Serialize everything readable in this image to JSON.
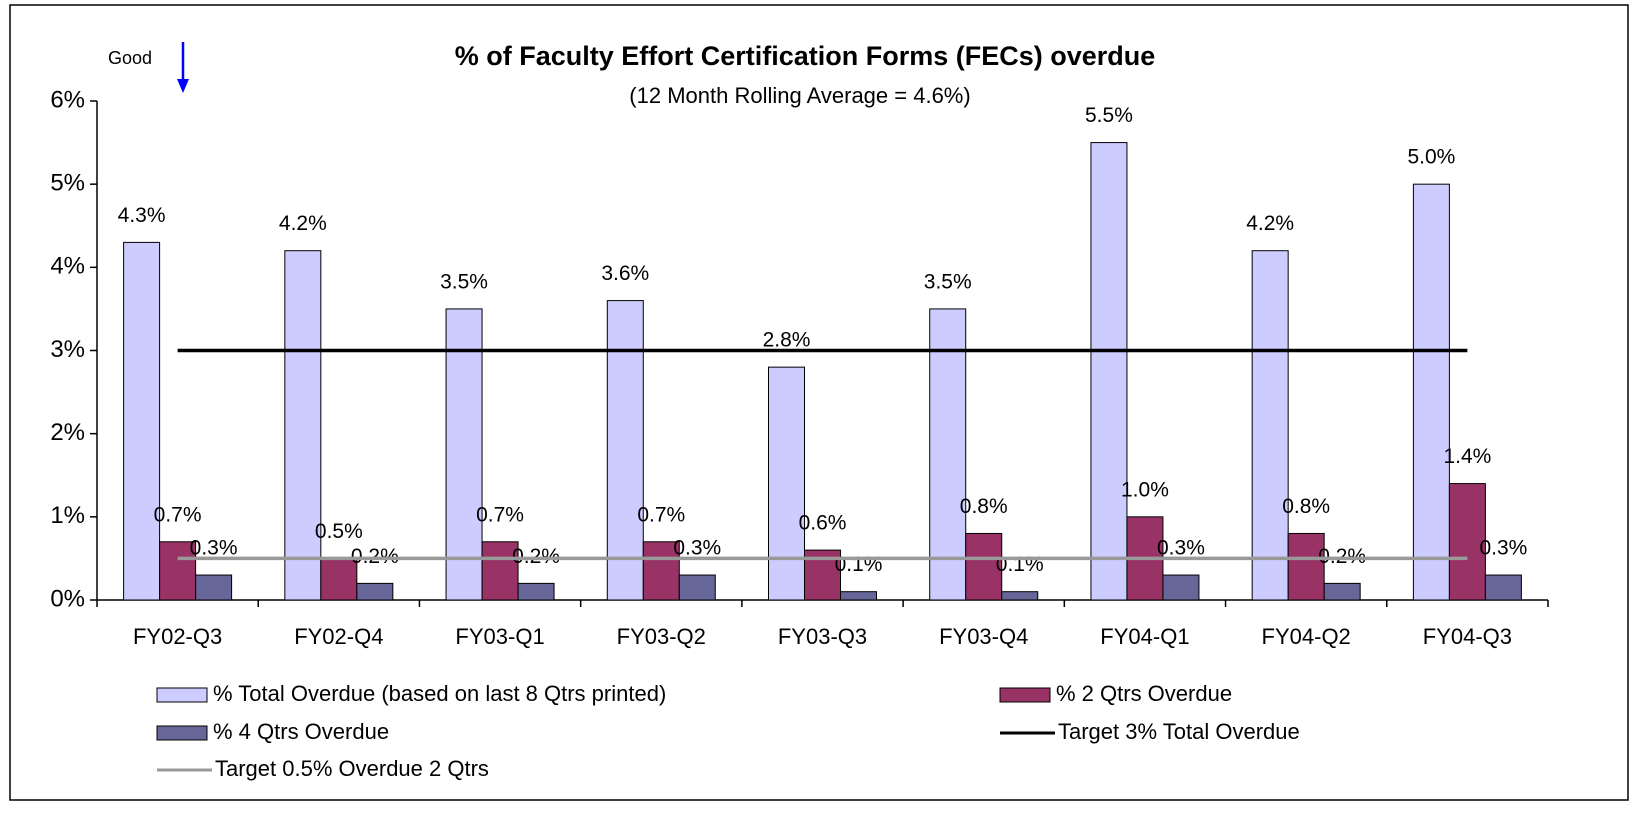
{
  "chart_data": {
    "type": "bar",
    "title": "% of Faculty Effort Certification Forms (FECs) overdue",
    "subtitle": "(12 Month Rolling Average = 4.6%)",
    "annotations": [
      "Good"
    ],
    "categories": [
      "FY02-Q3",
      "FY02-Q4",
      "FY03-Q1",
      "FY03-Q2",
      "FY03-Q3",
      "FY03-Q4",
      "FY04-Q1",
      "FY04-Q2",
      "FY04-Q3"
    ],
    "series": [
      {
        "name": "% Total Overdue (based on last 8 Qtrs printed)",
        "type": "bar",
        "color": "#ccccff",
        "values": [
          4.3,
          4.2,
          3.5,
          3.6,
          2.8,
          3.5,
          5.5,
          4.2,
          5.0
        ],
        "value_labels": [
          "4.3%",
          "4.2%",
          "3.5%",
          "3.6%",
          "2.8%",
          "3.5%",
          "5.5%",
          "4.2%",
          "5.0%"
        ]
      },
      {
        "name": "% 2 Qtrs Overdue",
        "type": "bar",
        "color": "#993366",
        "values": [
          0.7,
          0.5,
          0.7,
          0.7,
          0.6,
          0.8,
          1.0,
          0.8,
          1.4
        ],
        "value_labels": [
          "0.7%",
          "0.5%",
          "0.7%",
          "0.7%",
          "0.6%",
          "0.8%",
          "1.0%",
          "0.8%",
          "1.4%"
        ]
      },
      {
        "name": "% 4 Qtrs Overdue",
        "type": "bar",
        "color": "#666699",
        "values": [
          0.3,
          0.2,
          0.2,
          0.3,
          0.1,
          0.1,
          0.3,
          0.2,
          0.3
        ],
        "value_labels": [
          "0.3%",
          "0.2%",
          "0.2%",
          "0.3%",
          "0.1%",
          "0.1%",
          "0.3%",
          "0.2%",
          "0.3%"
        ]
      },
      {
        "name": "Target 3% Total Overdue",
        "type": "line",
        "color": "#000000",
        "values": [
          3,
          3,
          3,
          3,
          3,
          3,
          3,
          3,
          3
        ]
      },
      {
        "name": "Target 0.5% Overdue 2 Qtrs",
        "type": "line",
        "color": "#999999",
        "values": [
          0.5,
          0.5,
          0.5,
          0.5,
          0.5,
          0.5,
          0.5,
          0.5,
          0.5
        ]
      }
    ],
    "ylim": [
      0,
      6
    ],
    "yticks": [
      {
        "value": 0,
        "label": "0%"
      },
      {
        "value": 1,
        "label": "1%"
      },
      {
        "value": 2,
        "label": "2%"
      },
      {
        "value": 3,
        "label": "3%"
      },
      {
        "value": 4,
        "label": "4%"
      },
      {
        "value": 5,
        "label": "5%"
      },
      {
        "value": 6,
        "label": "6%"
      }
    ],
    "grid": false
  }
}
